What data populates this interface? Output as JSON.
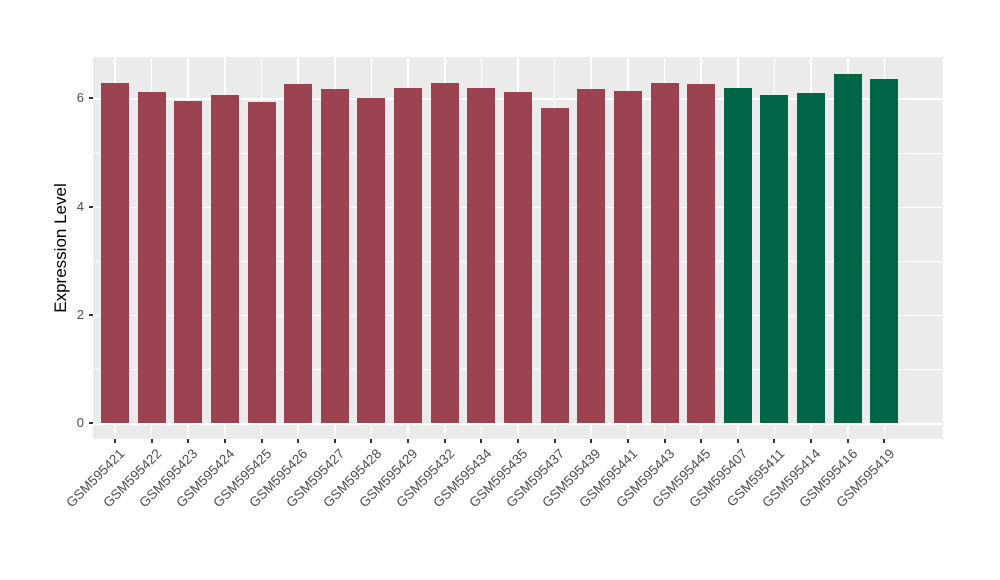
{
  "chart_data": {
    "type": "bar",
    "title": "",
    "xlabel": "",
    "ylabel": "Expression Level",
    "y_ticks": [
      0,
      2,
      4,
      6
    ],
    "y_minor_ticks": [
      1,
      3,
      5
    ],
    "ylim": [
      -0.32,
      6.77
    ],
    "grid": true,
    "legend_position": "none",
    "categories": [
      "GSM595421",
      "GSM595422",
      "GSM595423",
      "GSM595424",
      "GSM595425",
      "GSM595426",
      "GSM595427",
      "GSM595428",
      "GSM595429",
      "GSM595432",
      "GSM595434",
      "GSM595435",
      "GSM595437",
      "GSM595439",
      "GSM595441",
      "GSM595443",
      "GSM595445",
      "GSM595407",
      "GSM595411",
      "GSM595414",
      "GSM595416",
      "GSM595419"
    ],
    "values": [
      6.28,
      6.12,
      5.96,
      6.06,
      5.93,
      6.26,
      6.17,
      6.0,
      6.2,
      6.29,
      6.2,
      6.12,
      5.82,
      6.17,
      6.13,
      6.28,
      6.26,
      6.2,
      6.07,
      6.1,
      6.45,
      6.35
    ],
    "bar_colors": [
      "#9B4350",
      "#9B4350",
      "#9B4350",
      "#9B4350",
      "#9B4350",
      "#9B4350",
      "#9B4350",
      "#9B4350",
      "#9B4350",
      "#9B4350",
      "#9B4350",
      "#9B4350",
      "#9B4350",
      "#9B4350",
      "#9B4350",
      "#9B4350",
      "#9B4350",
      "#006645",
      "#006645",
      "#006645",
      "#006645",
      "#006645"
    ],
    "colors": {
      "group1_red": "#9B4350",
      "group2_green": "#006645",
      "panel_background": "#EBEBEB",
      "gridline": "#FFFFFF",
      "axis_text": "#4D4D4D"
    }
  }
}
